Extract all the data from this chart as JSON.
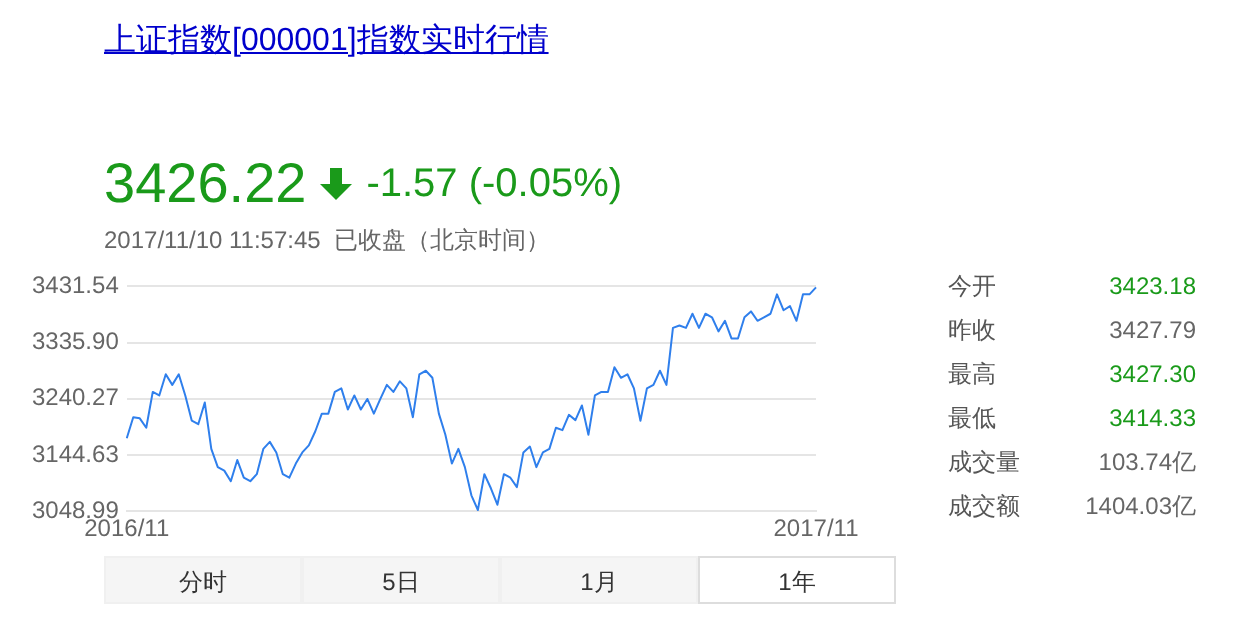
{
  "chart_data": {
    "type": "line",
    "title": "上证指数[000001]指数实时行情",
    "annotations": [
      "3426.22",
      "-1.57 (-0.05%)",
      "2017/11/10 11:57:45  已收盘（北京时间）",
      "今开",
      "3423.18",
      "昨收",
      "3427.79",
      "最高",
      "3427.30",
      "最低",
      "3414.33",
      "成交量",
      "103.74亿",
      "成交额",
      "1404.03亿",
      "分时",
      "5日",
      "1月",
      "1年"
    ],
    "categories": [
      "2016/11",
      null,
      null,
      null,
      null,
      null,
      null,
      null,
      null,
      null,
      null,
      null,
      null,
      null,
      null,
      null,
      null,
      null,
      null,
      null,
      null,
      null,
      null,
      null,
      null,
      null,
      null,
      null,
      null,
      null,
      null,
      null,
      null,
      null,
      null,
      null,
      null,
      null,
      null,
      null,
      null,
      null,
      null,
      null,
      null,
      null,
      null,
      null,
      null,
      null,
      null,
      null,
      null,
      null,
      null,
      null,
      null,
      null,
      null,
      null,
      null,
      null,
      null,
      null,
      null,
      null,
      null,
      null,
      null,
      null,
      null,
      null,
      null,
      null,
      null,
      null,
      null,
      null,
      null,
      null,
      null,
      null,
      null,
      null,
      null,
      null,
      null,
      null,
      null,
      null,
      null,
      null,
      null,
      null,
      null,
      null,
      null,
      null,
      null,
      null,
      null,
      null,
      null,
      null,
      null,
      null,
      "2017/11"
    ],
    "ylim": [
      3048.99,
      3431.54
    ],
    "yticks": [
      3048.99,
      3144.63,
      3240.27,
      {
        "value": 3335.9,
        "label": "3335.90"
      },
      3431.54
    ],
    "grid": "y",
    "legend": false,
    "marker": "none",
    "line_style": "solid",
    "series": [
      {
        "color": "#2f7fec",
        "values": [
          3173,
          3209,
          3207,
          3191,
          3252,
          3246,
          3282,
          3264,
          3282,
          3246,
          3203,
          3197,
          3234,
          3155,
          3124,
          3118,
          3100,
          3136,
          3106,
          3100,
          3112,
          3155,
          3167,
          3149,
          3112,
          3106,
          3130,
          3149,
          3161,
          3185,
          3215,
          3215,
          3252,
          3258,
          3222,
          3246,
          3222,
          3240,
          3215,
          3240,
          3264,
          3252,
          3270,
          3258,
          3209,
          3282,
          3288,
          3276,
          3215,
          3179,
          3130,
          3155,
          3124,
          3076,
          3051,
          3112,
          3088,
          3060,
          3112,
          3106,
          3090,
          3149,
          3159,
          3124,
          3149,
          3155,
          3191,
          3187,
          3213,
          3204,
          3229,
          3179,
          3246,
          3252,
          3252,
          3294,
          3276,
          3282,
          3258,
          3203,
          3258,
          3264,
          3288,
          3264,
          3361,
          3365,
          3361,
          3385,
          3361,
          3385,
          3379,
          3355,
          3373,
          3343,
          3343,
          3379,
          3389,
          3373,
          3379,
          3385,
          3418,
          3391,
          3398,
          3373,
          3418,
          3418,
          3430
        ]
      }
    ]
  }
}
